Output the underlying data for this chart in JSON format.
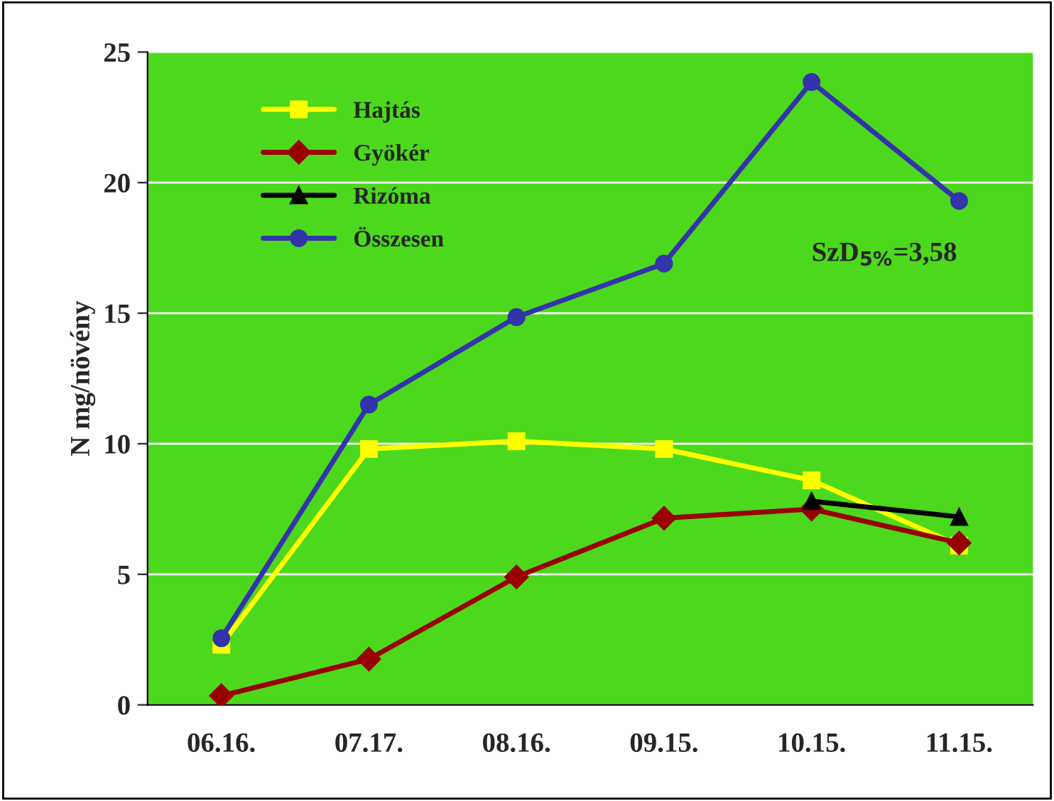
{
  "chart_data": {
    "type": "line",
    "categories": [
      "06.16.",
      "07.17.",
      "08.16.",
      "09.15.",
      "10.15.",
      "11.15."
    ],
    "ylabel": "N mg/növény",
    "ylim": [
      0,
      25
    ],
    "yticks": [
      0,
      5,
      10,
      15,
      20,
      25
    ],
    "grid": "y",
    "legend": "top left",
    "series": [
      {
        "name": "Hajtás",
        "color": "#ffff00",
        "marker": "square",
        "values": [
          2.3,
          9.8,
          10.1,
          9.8,
          8.6,
          6.1
        ]
      },
      {
        "name": "Gyökér",
        "color": "#990000",
        "marker": "diamond",
        "values": [
          0.35,
          1.75,
          4.9,
          7.15,
          7.5,
          6.2
        ]
      },
      {
        "name": "Rizóma",
        "color": "#000000",
        "marker": "triangle",
        "values": [
          null,
          null,
          null,
          null,
          7.8,
          7.2
        ]
      },
      {
        "name": "Összesen",
        "color": "#3333aa",
        "marker": "circle",
        "values": [
          2.55,
          11.5,
          14.85,
          16.9,
          23.85,
          19.3
        ]
      }
    ],
    "annotations": [
      "SzD$_{5%}$=3,58"
    ]
  }
}
